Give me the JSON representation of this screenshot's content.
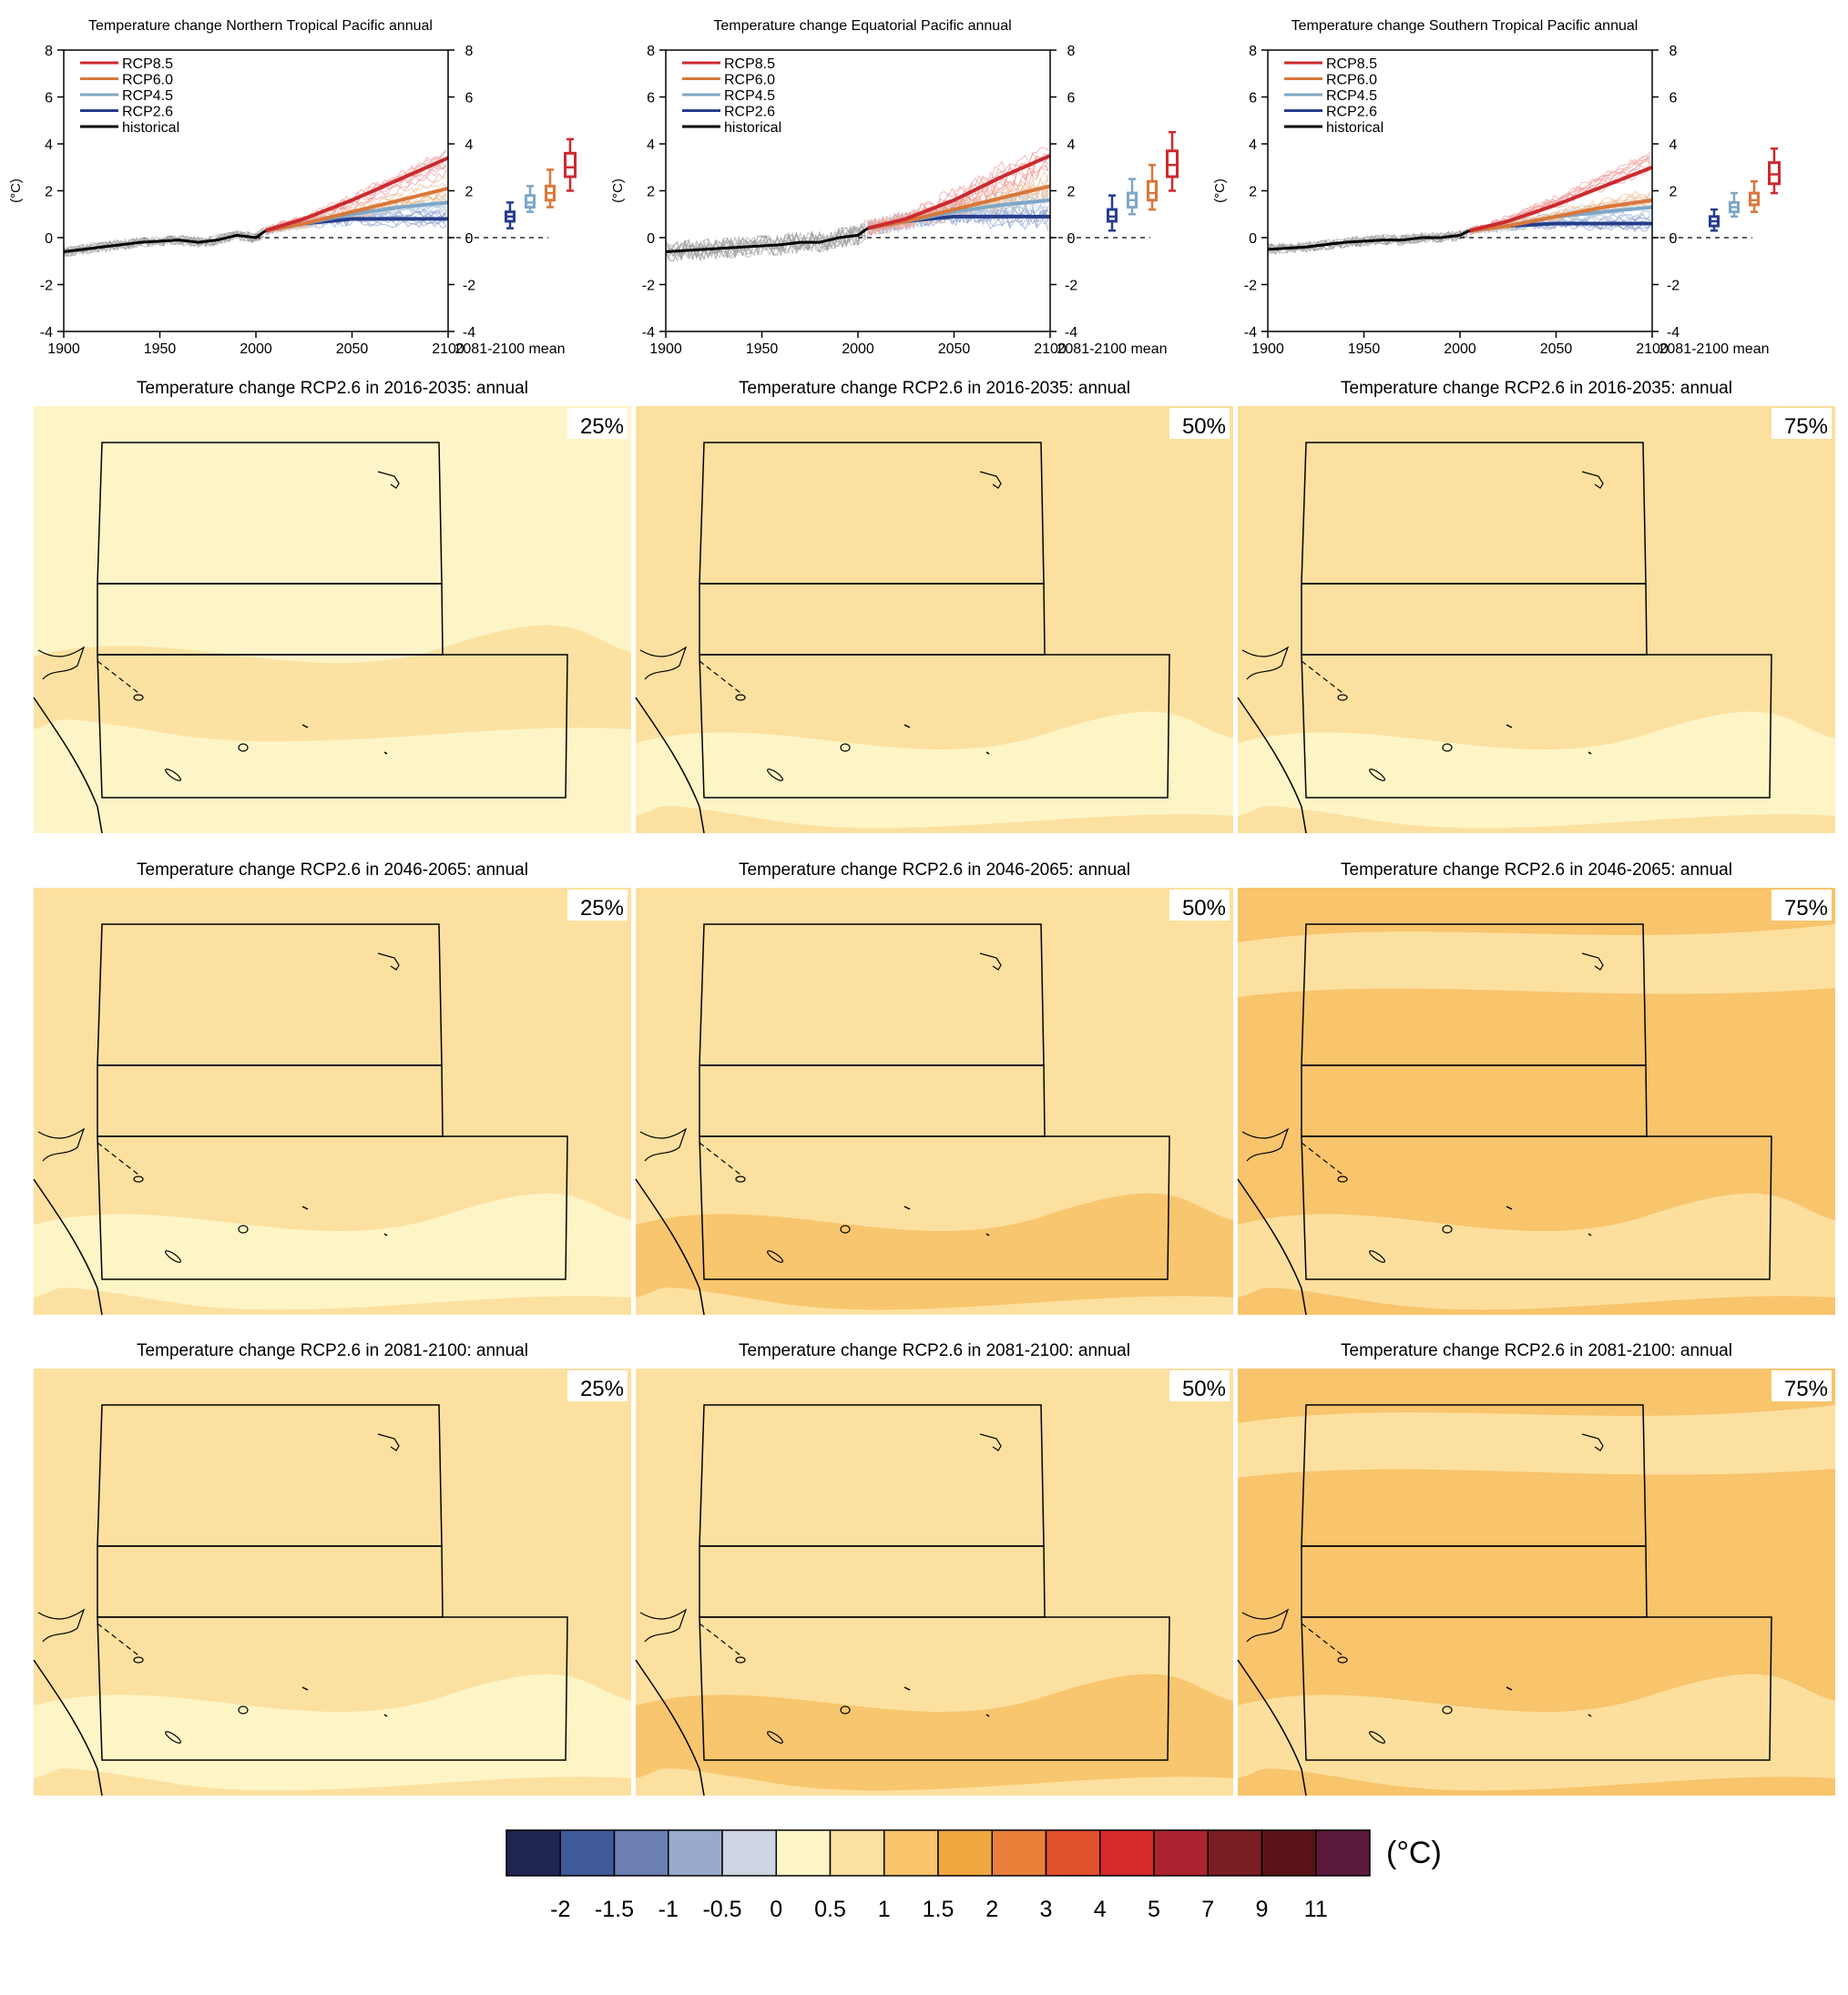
{
  "chart_data": {
    "type": "figure",
    "timeseries": {
      "type": "line",
      "xticks": [
        "1900",
        "1950",
        "2000",
        "2050",
        "2100"
      ],
      "yticks": [
        "8",
        "6",
        "4",
        "2",
        "0",
        "-2",
        "-4"
      ],
      "xlim": [
        1900,
        2100
      ],
      "ylim": [
        -4,
        8
      ],
      "ylabel": "(°C)",
      "box_label": "2081-2100 mean",
      "legend": [
        "RCP8.5",
        "RCP6.0",
        "RCP4.5",
        "RCP2.6",
        "historical"
      ],
      "colors": {
        "RCP8.5": "#cc2a2f",
        "RCP6.0": "#d9773a",
        "RCP4.5": "#7ea7c7",
        "RCP2.6": "#263e8c",
        "historical": "#000000"
      },
      "panels": [
        {
          "title": "Temperature change Northern Tropical Pacific annual",
          "historical": {
            "x": [
              1900,
              1920,
              1940,
              1960,
              1970,
              1980,
              1990,
              2000,
              2005
            ],
            "y": [
              -0.6,
              -0.4,
              -0.2,
              -0.1,
              -0.2,
              -0.1,
              0.1,
              0.0,
              0.3
            ]
          },
          "series": [
            {
              "name": "RCP8.5",
              "x": [
                2005,
                2025,
                2050,
                2075,
                2100
              ],
              "y": [
                0.3,
                0.8,
                1.6,
                2.5,
                3.4
              ]
            },
            {
              "name": "RCP6.0",
              "x": [
                2005,
                2025,
                2050,
                2075,
                2100
              ],
              "y": [
                0.3,
                0.6,
                1.1,
                1.6,
                2.1
              ]
            },
            {
              "name": "RCP4.5",
              "x": [
                2005,
                2025,
                2050,
                2075,
                2100
              ],
              "y": [
                0.3,
                0.6,
                1.0,
                1.3,
                1.5
              ]
            },
            {
              "name": "RCP2.6",
              "x": [
                2005,
                2025,
                2050,
                2075,
                2100
              ],
              "y": [
                0.3,
                0.6,
                0.8,
                0.8,
                0.8
              ]
            }
          ],
          "boxes": [
            {
              "name": "RCP2.6",
              "min": 0.4,
              "q1": 0.7,
              "median": 0.9,
              "q3": 1.1,
              "max": 1.5
            },
            {
              "name": "RCP4.5",
              "min": 1.1,
              "q1": 1.3,
              "median": 1.5,
              "q3": 1.8,
              "max": 2.2
            },
            {
              "name": "RCP6.0",
              "min": 1.3,
              "q1": 1.6,
              "median": 1.9,
              "q3": 2.2,
              "max": 2.9
            },
            {
              "name": "RCP8.5",
              "min": 2.0,
              "q1": 2.6,
              "median": 3.0,
              "q3": 3.6,
              "max": 4.2
            }
          ]
        },
        {
          "title": "Temperature change Equatorial Pacific annual",
          "historical": {
            "x": [
              1900,
              1920,
              1940,
              1960,
              1970,
              1980,
              1990,
              2000,
              2005
            ],
            "y": [
              -0.6,
              -0.5,
              -0.4,
              -0.3,
              -0.2,
              -0.2,
              0.0,
              0.1,
              0.4
            ]
          },
          "series": [
            {
              "name": "RCP8.5",
              "x": [
                2005,
                2025,
                2050,
                2075,
                2100
              ],
              "y": [
                0.4,
                0.8,
                1.6,
                2.6,
                3.5
              ]
            },
            {
              "name": "RCP6.0",
              "x": [
                2005,
                2025,
                2050,
                2075,
                2100
              ],
              "y": [
                0.4,
                0.7,
                1.2,
                1.7,
                2.2
              ]
            },
            {
              "name": "RCP4.5",
              "x": [
                2005,
                2025,
                2050,
                2075,
                2100
              ],
              "y": [
                0.4,
                0.7,
                1.1,
                1.4,
                1.6
              ]
            },
            {
              "name": "RCP2.6",
              "x": [
                2005,
                2025,
                2050,
                2075,
                2100
              ],
              "y": [
                0.4,
                0.7,
                0.9,
                0.9,
                0.9
              ]
            }
          ],
          "boxes": [
            {
              "name": "RCP2.6",
              "min": 0.3,
              "q1": 0.7,
              "median": 0.9,
              "q3": 1.2,
              "max": 1.8
            },
            {
              "name": "RCP4.5",
              "min": 1.0,
              "q1": 1.3,
              "median": 1.6,
              "q3": 1.9,
              "max": 2.5
            },
            {
              "name": "RCP6.0",
              "min": 1.2,
              "q1": 1.6,
              "median": 1.9,
              "q3": 2.4,
              "max": 3.1
            },
            {
              "name": "RCP8.5",
              "min": 2.0,
              "q1": 2.6,
              "median": 3.1,
              "q3": 3.7,
              "max": 4.5
            }
          ]
        },
        {
          "title": "Temperature change Southern Tropical Pacific annual",
          "historical": {
            "x": [
              1900,
              1920,
              1940,
              1960,
              1970,
              1980,
              1990,
              2000,
              2005
            ],
            "y": [
              -0.5,
              -0.4,
              -0.2,
              -0.1,
              -0.1,
              0.0,
              0.0,
              0.1,
              0.3
            ]
          },
          "series": [
            {
              "name": "RCP8.5",
              "x": [
                2005,
                2025,
                2050,
                2075,
                2100
              ],
              "y": [
                0.3,
                0.7,
                1.4,
                2.2,
                3.0
              ]
            },
            {
              "name": "RCP6.0",
              "x": [
                2005,
                2025,
                2050,
                2075,
                2100
              ],
              "y": [
                0.3,
                0.5,
                0.9,
                1.3,
                1.6
              ]
            },
            {
              "name": "RCP4.5",
              "x": [
                2005,
                2025,
                2050,
                2075,
                2100
              ],
              "y": [
                0.3,
                0.5,
                0.9,
                1.1,
                1.3
              ]
            },
            {
              "name": "RCP2.6",
              "x": [
                2005,
                2025,
                2050,
                2075,
                2100
              ],
              "y": [
                0.3,
                0.5,
                0.6,
                0.6,
                0.6
              ]
            }
          ],
          "boxes": [
            {
              "name": "RCP2.6",
              "min": 0.3,
              "q1": 0.5,
              "median": 0.7,
              "q3": 0.9,
              "max": 1.2
            },
            {
              "name": "RCP4.5",
              "min": 0.9,
              "q1": 1.1,
              "median": 1.3,
              "q3": 1.5,
              "max": 1.9
            },
            {
              "name": "RCP6.0",
              "min": 1.1,
              "q1": 1.4,
              "median": 1.6,
              "q3": 1.9,
              "max": 2.4
            },
            {
              "name": "RCP8.5",
              "min": 1.9,
              "q1": 2.3,
              "median": 2.7,
              "q3": 3.2,
              "max": 3.8
            }
          ]
        }
      ]
    },
    "maps": {
      "type": "heatmap",
      "panels": [
        {
          "title": "Temperature change RCP2.6 in 2016-2035: annual",
          "percentile": "25%",
          "dominant_level": "0.5",
          "secondary_level": "1"
        },
        {
          "title": "Temperature change RCP2.6 in 2016-2035: annual",
          "percentile": "50%",
          "dominant_level": "1",
          "secondary_level": "0.5"
        },
        {
          "title": "Temperature change RCP2.6 in 2016-2035: annual",
          "percentile": "75%",
          "dominant_level": "1",
          "secondary_level": "0.5"
        },
        {
          "title": "Temperature change RCP2.6 in 2046-2065: annual",
          "percentile": "25%",
          "dominant_level": "1",
          "secondary_level": "0.5"
        },
        {
          "title": "Temperature change RCP2.6 in 2046-2065: annual",
          "percentile": "50%",
          "dominant_level": "1",
          "secondary_level": "1.5"
        },
        {
          "title": "Temperature change RCP2.6 in 2046-2065: annual",
          "percentile": "75%",
          "dominant_level": "1.5",
          "secondary_level": "1"
        },
        {
          "title": "Temperature change RCP2.6 in 2081-2100: annual",
          "percentile": "25%",
          "dominant_level": "1",
          "secondary_level": "0.5"
        },
        {
          "title": "Temperature change RCP2.6 in 2081-2100: annual",
          "percentile": "50%",
          "dominant_level": "1",
          "secondary_level": "1.5"
        },
        {
          "title": "Temperature change RCP2.6 in 2081-2100: annual",
          "percentile": "75%",
          "dominant_level": "1.5",
          "secondary_level": "1"
        }
      ]
    },
    "colorbar": {
      "labels": [
        "-2",
        "-1.5",
        "-1",
        "-0.5",
        "0",
        "0.5",
        "1",
        "1.5",
        "2",
        "3",
        "4",
        "5",
        "7",
        "9",
        "11"
      ],
      "colors": [
        "#1f2550",
        "#3e5a9a",
        "#6b7fb3",
        "#9aaacd",
        "#cdd4e2",
        "#fdf5c8",
        "#fce0a0",
        "#f8c46c",
        "#f1a73f",
        "#e9803a",
        "#e0502a",
        "#d42a2a",
        "#ad2230",
        "#7b1e24",
        "#5a1218",
        "#5c1a3e"
      ],
      "unit": "(°C)"
    }
  }
}
